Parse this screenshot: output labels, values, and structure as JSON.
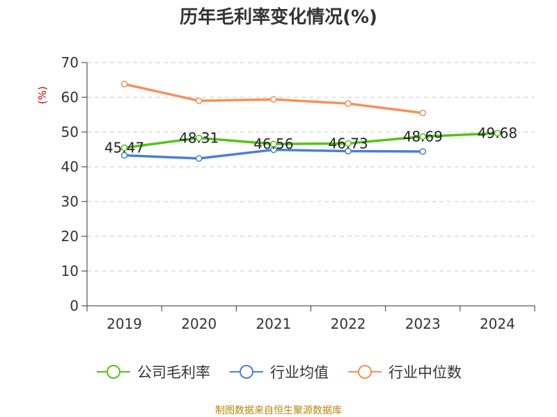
{
  "chart_data": {
    "type": "line",
    "title": "历年毛利率变化情况(%)",
    "ylabel": "(%)",
    "categories": [
      "2019",
      "2020",
      "2021",
      "2022",
      "2023",
      "2024"
    ],
    "ylim": [
      0,
      70
    ],
    "yticks": [
      0,
      10,
      20,
      30,
      40,
      50,
      60,
      70
    ],
    "grid": true,
    "legend_position": "bottom",
    "series": [
      {
        "name": "公司毛利率",
        "color": "#52c41a",
        "values": [
          45.47,
          48.31,
          46.56,
          46.73,
          48.69,
          49.68
        ],
        "labels": [
          "45.47",
          "48.31",
          "46.56",
          "46.73",
          "48.69",
          "49.68"
        ]
      },
      {
        "name": "行业均值",
        "color": "#4a7fd8",
        "values": [
          43.3,
          42.4,
          44.9,
          44.5,
          44.4,
          null
        ]
      },
      {
        "name": "行业中位数",
        "color": "#f79056",
        "values": [
          63.8,
          59.0,
          59.4,
          58.2,
          55.5,
          null
        ]
      }
    ]
  },
  "source_note": "制图数据来自恒生聚源数据库"
}
